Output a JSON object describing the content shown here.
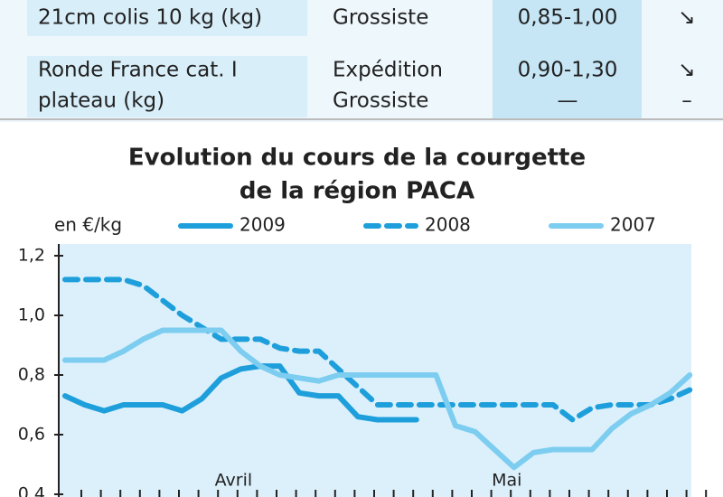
{
  "table": {
    "rows": [
      {
        "product": [
          "21cm colis 10 kg (kg)"
        ],
        "market": [
          "Grossiste"
        ],
        "price": [
          "0,85-1,00"
        ],
        "trend": [
          "↘"
        ]
      },
      {
        "product": [
          "Ronde France cat. I",
          "plateau (kg)"
        ],
        "market": [
          "Expédition",
          "Grossiste"
        ],
        "price": [
          "0,90-1,30",
          "—"
        ],
        "trend": [
          "↘",
          "–"
        ]
      }
    ]
  },
  "chart_data": {
    "type": "line",
    "title": [
      "Evolution du cours de la courgette",
      "de la région PACA"
    ],
    "y_label": "en €/kg",
    "categories": [
      null,
      null,
      null,
      null,
      null,
      null,
      null,
      null,
      null,
      "Avril",
      null,
      null,
      null,
      null,
      null,
      null,
      null,
      null,
      null,
      null,
      null,
      null,
      null,
      "Mai",
      null,
      null,
      null,
      null,
      null,
      null,
      null,
      null,
      null
    ],
    "ylim": [
      0.4,
      1.2
    ],
    "yticks": [
      {
        "value": 0.4,
        "label": "0,4"
      },
      {
        "value": 0.6,
        "label": "0,6"
      },
      {
        "value": 0.8,
        "label": "0,8"
      },
      {
        "value": 1.0,
        "label": "1,0"
      },
      {
        "value": 1.2,
        "label": "1,2"
      }
    ],
    "series": [
      {
        "name": "2009",
        "color": "#1e9fdb",
        "dashed": false,
        "values": [
          0.73,
          0.7,
          0.68,
          0.7,
          0.7,
          0.7,
          0.68,
          0.72,
          0.79,
          0.82,
          0.83,
          0.83,
          0.74,
          0.73,
          0.73,
          0.66,
          0.65,
          0.65,
          0.65,
          null,
          null,
          null,
          null,
          null,
          null,
          null,
          null,
          null,
          null,
          null,
          null,
          null,
          null
        ]
      },
      {
        "name": "2008",
        "color": "#1e9fdb",
        "dashed": true,
        "values": [
          1.12,
          1.12,
          1.12,
          1.12,
          1.1,
          1.05,
          1.0,
          0.96,
          0.92,
          0.92,
          0.92,
          0.89,
          0.88,
          0.88,
          0.82,
          0.76,
          0.7,
          0.7,
          0.7,
          0.7,
          0.7,
          0.7,
          0.7,
          0.7,
          0.7,
          0.7,
          0.65,
          0.69,
          0.7,
          0.7,
          0.7,
          0.72,
          0.75
        ]
      },
      {
        "name": "2007",
        "color": "#7ccdf0",
        "dashed": false,
        "values": [
          0.85,
          0.85,
          0.85,
          0.88,
          0.92,
          0.95,
          0.95,
          0.95,
          0.95,
          0.88,
          0.83,
          0.8,
          0.79,
          0.78,
          0.8,
          0.8,
          0.8,
          0.8,
          0.8,
          0.8,
          0.63,
          0.61,
          0.55,
          0.49,
          0.54,
          0.55,
          0.55,
          0.55,
          0.62,
          0.67,
          0.7,
          0.74,
          0.8
        ]
      }
    ]
  }
}
